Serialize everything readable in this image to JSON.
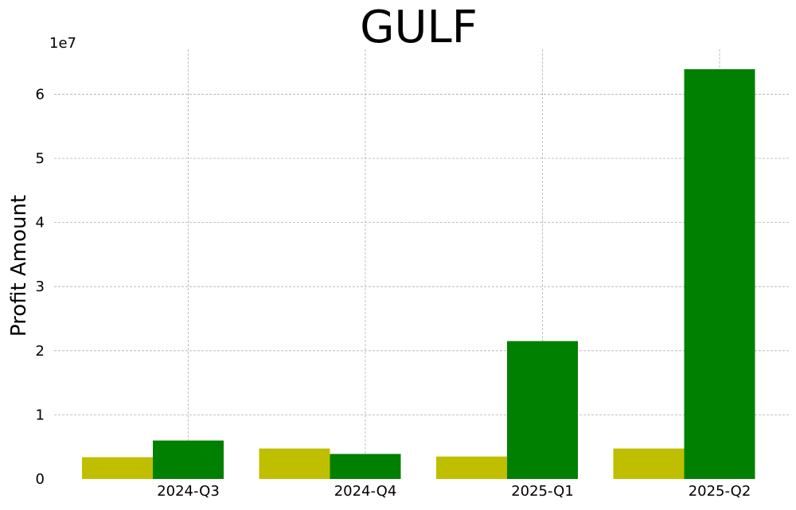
{
  "chart_data": {
    "type": "bar",
    "title": "GULF",
    "xlabel": "",
    "ylabel": "Profit Amount",
    "offset_label": "1e7",
    "categories": [
      "2024-Q3",
      "2024-Q4",
      "2025-Q1",
      "2025-Q2"
    ],
    "series": [
      {
        "values": [
          3400000,
          4750000,
          3500000,
          4750000
        ],
        "color": "#bfbf00"
      },
      {
        "values": [
          6000000,
          3900000,
          21500000,
          63900000
        ],
        "color": "#008000"
      }
    ],
    "ylim": [
      0,
      67000000
    ],
    "yticks": [
      0,
      10000000,
      20000000,
      30000000,
      40000000,
      50000000,
      60000000
    ],
    "ytick_labels": [
      "0",
      "1",
      "2",
      "3",
      "4",
      "5",
      "6"
    ],
    "grid": true,
    "legend": "none"
  }
}
